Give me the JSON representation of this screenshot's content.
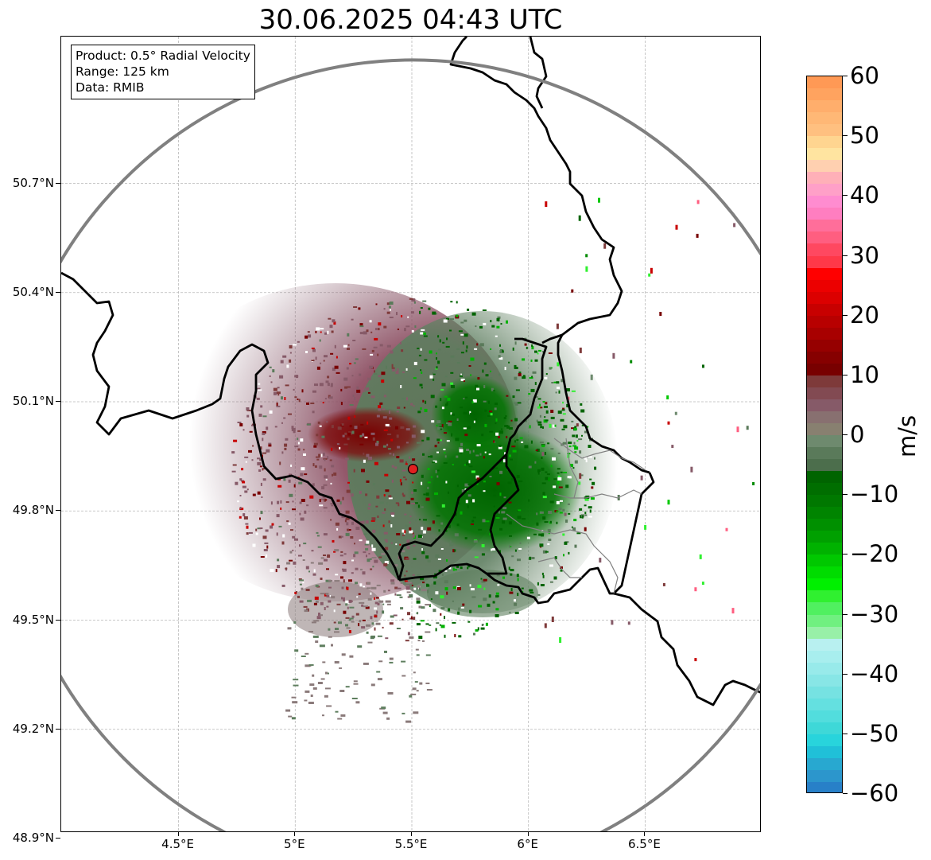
{
  "title": "30.06.2025 04:43 UTC",
  "info": {
    "product": "Product: 0.5° Radial Velocity",
    "range": "Range: 125 km",
    "data": "Data: RMIB"
  },
  "axes": {
    "lat_ticks": [
      "50.7°N",
      "50.4°N",
      "50.1°N",
      "49.8°N",
      "49.5°N",
      "49.2°N",
      "48.9°N"
    ],
    "lat_values": [
      50.7,
      50.4,
      50.1,
      49.8,
      49.5,
      49.2,
      48.9
    ],
    "lon_ticks": [
      "4.5°E",
      "5°E",
      "5.5°E",
      "6°E",
      "6.5°E"
    ],
    "lon_values": [
      4.5,
      5.0,
      5.5,
      6.0,
      6.5
    ],
    "lon_range": [
      4.0,
      7.0
    ],
    "lat_range": [
      48.8,
      51.0
    ],
    "grid": true
  },
  "radar": {
    "lon": 5.505,
    "lat": 49.915,
    "range_km": 125,
    "marker_color": "#e02020"
  },
  "colorbar": {
    "unit": "m/s",
    "min": -60,
    "max": 60,
    "tick_values": [
      60,
      50,
      40,
      30,
      20,
      10,
      0,
      -10,
      -20,
      -30,
      -40,
      -50,
      -60
    ],
    "tick_labels": [
      "60",
      "50",
      "40",
      "30",
      "20",
      "10",
      "0",
      "−10",
      "−20",
      "−30",
      "−40",
      "−50",
      "−60"
    ],
    "stops": [
      {
        "v": 58,
        "c": "#ff9955"
      },
      {
        "v": 56,
        "c": "#ffa35f"
      },
      {
        "v": 54,
        "c": "#ffae6c"
      },
      {
        "v": 52,
        "c": "#ffb876"
      },
      {
        "v": 50,
        "c": "#ffc080"
      },
      {
        "v": 48,
        "c": "#ffd590"
      },
      {
        "v": 46,
        "c": "#ffe4a0"
      },
      {
        "v": 44,
        "c": "#ffd0b0"
      },
      {
        "v": 42,
        "c": "#ffb0b8"
      },
      {
        "v": 40,
        "c": "#ffa0c8"
      },
      {
        "v": 38,
        "c": "#ff8cd0"
      },
      {
        "v": 36,
        "c": "#ff7ec0"
      },
      {
        "v": 34,
        "c": "#ff6e9a"
      },
      {
        "v": 32,
        "c": "#ff5e80"
      },
      {
        "v": 30,
        "c": "#ff4860"
      },
      {
        "v": 28,
        "c": "#ff3848"
      },
      {
        "v": 26,
        "c": "#ff0000"
      },
      {
        "v": 24,
        "c": "#ec0000"
      },
      {
        "v": 22,
        "c": "#dc0000"
      },
      {
        "v": 20,
        "c": "#c80000"
      },
      {
        "v": 18,
        "c": "#b80000"
      },
      {
        "v": 16,
        "c": "#a80000"
      },
      {
        "v": 14,
        "c": "#960000"
      },
      {
        "v": 12,
        "c": "#860000"
      },
      {
        "v": 10,
        "c": "#780000"
      },
      {
        "v": 8,
        "c": "#7e3a3a"
      },
      {
        "v": 6,
        "c": "#824a52"
      },
      {
        "v": 4,
        "c": "#865a68"
      },
      {
        "v": 2,
        "c": "#887070"
      },
      {
        "v": 0,
        "c": "#888070"
      },
      {
        "v": -2,
        "c": "#6e8a6e"
      },
      {
        "v": -4,
        "c": "#5a7a5a"
      },
      {
        "v": -6,
        "c": "#4c6e4c"
      },
      {
        "v": -8,
        "c": "#006400"
      },
      {
        "v": -10,
        "c": "#006e00"
      },
      {
        "v": -12,
        "c": "#007800"
      },
      {
        "v": -14,
        "c": "#008400"
      },
      {
        "v": -16,
        "c": "#009000"
      },
      {
        "v": -18,
        "c": "#00a000"
      },
      {
        "v": -20,
        "c": "#00b200"
      },
      {
        "v": -22,
        "c": "#00c800"
      },
      {
        "v": -24,
        "c": "#00dc00"
      },
      {
        "v": -26,
        "c": "#00f000"
      },
      {
        "v": -28,
        "c": "#30f030"
      },
      {
        "v": -30,
        "c": "#50f060"
      },
      {
        "v": -32,
        "c": "#70f080"
      },
      {
        "v": -34,
        "c": "#98f0a8"
      },
      {
        "v": -36,
        "c": "#b8f0f0"
      },
      {
        "v": -38,
        "c": "#a8eeee"
      },
      {
        "v": -40,
        "c": "#98eaea"
      },
      {
        "v": -42,
        "c": "#88e6e6"
      },
      {
        "v": -44,
        "c": "#76e2e2"
      },
      {
        "v": -46,
        "c": "#64e0e0"
      },
      {
        "v": -48,
        "c": "#52dddd"
      },
      {
        "v": -50,
        "c": "#3ed8d8"
      },
      {
        "v": -52,
        "c": "#28d4dc"
      },
      {
        "v": -54,
        "c": "#20c0d8"
      },
      {
        "v": -56,
        "c": "#28a8d0"
      },
      {
        "v": -58,
        "c": "#2c96cc"
      },
      {
        "v": -60,
        "c": "#2880c8"
      }
    ]
  },
  "colors": {
    "border": "#000000",
    "admin_border": "#808080",
    "range_ring": "#808080",
    "grid": "#b8b8b8",
    "inbound_dark": "#006400",
    "inbound_mid": "#5a7a5a",
    "outbound_dark": "#780000",
    "outbound_mid": "#865a68"
  }
}
